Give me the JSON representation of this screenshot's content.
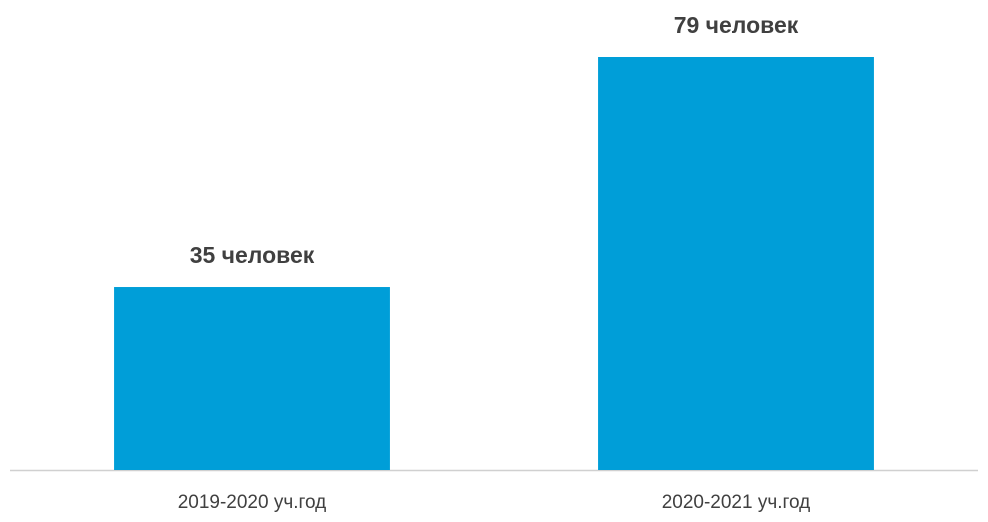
{
  "chart_data": {
    "type": "bar",
    "categories": [
      "2019-2020 уч.год",
      "2020-2021 уч.год"
    ],
    "values": [
      35,
      79
    ],
    "value_labels": [
      "35 человек",
      "79 человек"
    ],
    "color": "#009ed8"
  }
}
